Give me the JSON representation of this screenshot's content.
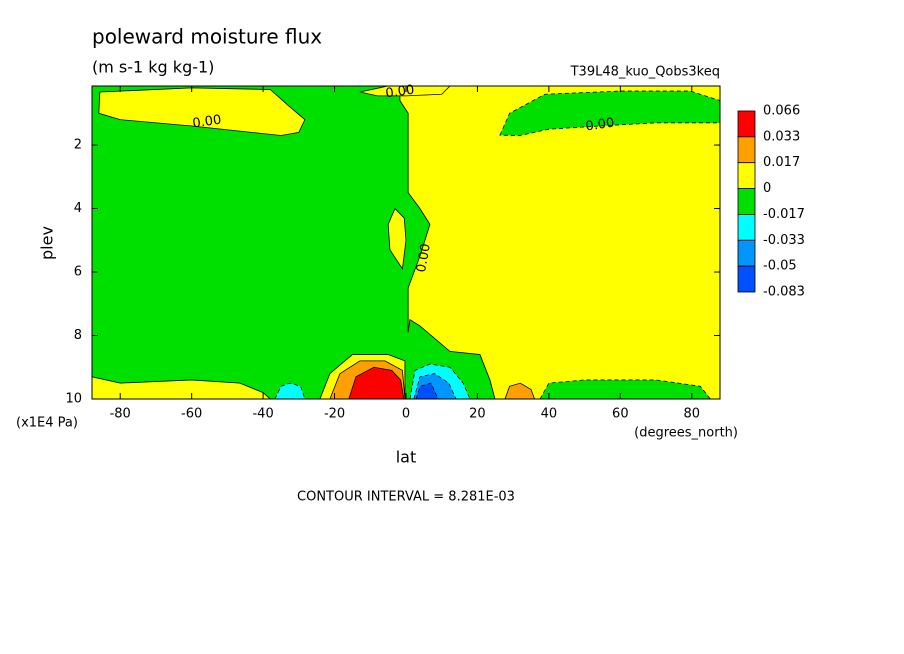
{
  "chart_data": {
    "type": "contour",
    "title": "poleward moisture flux",
    "subtitle": "(m s-1 kg kg-1)",
    "dataset": "T39L48_kuo_Qobs3keq",
    "x_label": "lat",
    "x_units": "(degrees_north)",
    "y_label": "plev",
    "y_units": "(x1E4 Pa)",
    "note": "CONTOUR INTERVAL = 8.281E-03",
    "xlim": [
      -87.9,
      87.9
    ],
    "xticks": [
      -80,
      -60,
      -40,
      -20,
      0,
      20,
      40,
      60,
      80
    ],
    "ylim": [
      10,
      0.14
    ],
    "yticks": [
      2,
      4,
      6,
      8,
      10
    ],
    "levels": [
      0.066,
      0.033,
      0.017,
      0,
      -0.017,
      -0.033,
      -0.05,
      -0.083
    ],
    "colors": [
      "#ff0000",
      "#ffa000",
      "#ffff00",
      "#00e000",
      "#00ffff",
      "#0096ff",
      "#0050ff"
    ],
    "contour_labels": [
      "0.00",
      "0.00",
      "0.00",
      "0.00"
    ],
    "regions": [
      {
        "value": -0.017,
        "points": [
          [
            -87.9,
            0.14
          ],
          [
            87.9,
            0.14
          ],
          [
            87.9,
            10
          ],
          [
            -87.9,
            10
          ]
        ]
      },
      {
        "value": 0,
        "points": [
          [
            -1.7,
            0.14
          ],
          [
            87.9,
            0.14
          ],
          [
            87.9,
            10
          ],
          [
            24.9,
            10
          ],
          [
            23.5,
            9.4
          ],
          [
            20.7,
            8.6
          ],
          [
            12.3,
            8.5
          ],
          [
            3.9,
            7.7
          ],
          [
            1.1,
            7.5
          ],
          [
            0.6,
            7.9
          ],
          [
            0.6,
            6.5
          ],
          [
            3.9,
            5.5
          ],
          [
            6.7,
            4.5
          ],
          [
            3.9,
            4.0
          ],
          [
            0.6,
            3.5
          ],
          [
            0.6,
            1.0
          ],
          [
            -1.7,
            0.6
          ]
        ]
      },
      {
        "value": -0.017,
        "points": [
          [
            26.3,
            1.69
          ],
          [
            29,
            1.0
          ],
          [
            38.9,
            0.4
          ],
          [
            60,
            0.3
          ],
          [
            79.6,
            0.3
          ],
          [
            87.9,
            0.6
          ],
          [
            87.9,
            1.3
          ],
          [
            70,
            1.3
          ],
          [
            54.3,
            1.4
          ],
          [
            40,
            1.5
          ],
          [
            31.9,
            1.7
          ]
        ]
      },
      {
        "value": -0.017,
        "points": [
          [
            37.5,
            10
          ],
          [
            40,
            9.5
          ],
          [
            50,
            9.4
          ],
          [
            70,
            9.4
          ],
          [
            82.4,
            9.6
          ],
          [
            85.2,
            10
          ]
        ]
      },
      {
        "value": 0,
        "points": [
          [
            -85.7,
            0.33
          ],
          [
            -60,
            0.2
          ],
          [
            -38,
            0.25
          ],
          [
            -32.5,
            0.8
          ],
          [
            -28.3,
            1.2
          ],
          [
            -30,
            1.6
          ],
          [
            -35,
            1.7
          ],
          [
            -60,
            1.4
          ],
          [
            -80,
            1.2
          ],
          [
            -86,
            1.0
          ]
        ]
      },
      {
        "value": 0,
        "points": [
          [
            -12.9,
            0.33
          ],
          [
            -5,
            0.14
          ],
          [
            12.3,
            0.14
          ],
          [
            10,
            0.4
          ],
          [
            0,
            0.45
          ],
          [
            -8,
            0.45
          ]
        ]
      },
      {
        "value": 0,
        "points": [
          [
            -87.9,
            9.3
          ],
          [
            -80,
            9.5
          ],
          [
            -60,
            9.4
          ],
          [
            -46.5,
            9.5
          ],
          [
            -40,
            9.8
          ],
          [
            -38,
            10
          ],
          [
            -87.9,
            10
          ]
        ]
      },
      {
        "value": 0,
        "points": [
          [
            -24.1,
            10
          ],
          [
            -21.3,
            9.2
          ],
          [
            -15,
            8.6
          ],
          [
            -5,
            8.6
          ],
          [
            -0.3,
            8.8
          ],
          [
            -0.3,
            10
          ]
        ]
      },
      {
        "value": 0,
        "points": [
          [
            -3.1,
            4.0
          ],
          [
            -0.5,
            4.3
          ],
          [
            0,
            5.0
          ],
          [
            -1,
            5.9
          ],
          [
            -4.5,
            5.3
          ],
          [
            -5,
            4.5
          ]
        ]
      },
      {
        "value": 0.017,
        "points": [
          [
            -21.3,
            10
          ],
          [
            -18.5,
            9.2
          ],
          [
            -12.9,
            8.8
          ],
          [
            -5.9,
            8.8
          ],
          [
            -1,
            9.1
          ],
          [
            -0.3,
            10
          ]
        ]
      },
      {
        "value": 0.033,
        "points": [
          [
            -16,
            10
          ],
          [
            -14,
            9.3
          ],
          [
            -9,
            9.0
          ],
          [
            -4,
            9.1
          ],
          [
            -1.5,
            9.4
          ],
          [
            -0.6,
            10
          ]
        ]
      },
      {
        "value": -0.033,
        "points": [
          [
            -36.7,
            10
          ],
          [
            -35,
            9.6
          ],
          [
            -32.5,
            9.5
          ],
          [
            -29.5,
            9.6
          ],
          [
            -28.3,
            10
          ]
        ]
      },
      {
        "value": -0.033,
        "points": [
          [
            1.1,
            10
          ],
          [
            2.5,
            9.1
          ],
          [
            6.7,
            8.9
          ],
          [
            12.3,
            9.0
          ],
          [
            16,
            9.5
          ],
          [
            17.9,
            10
          ]
        ]
      },
      {
        "value": -0.05,
        "points": [
          [
            2.2,
            10
          ],
          [
            3.9,
            9.3
          ],
          [
            8,
            9.2
          ],
          [
            12,
            9.5
          ],
          [
            14,
            10
          ]
        ]
      },
      {
        "value": -0.083,
        "points": [
          [
            2.8,
            10
          ],
          [
            4,
            9.6
          ],
          [
            7,
            9.5
          ],
          [
            9,
            10
          ]
        ]
      },
      {
        "value": 0.017,
        "points": [
          [
            27.7,
            10
          ],
          [
            29,
            9.6
          ],
          [
            32,
            9.5
          ],
          [
            35,
            9.7
          ],
          [
            36,
            10
          ]
        ]
      }
    ]
  }
}
